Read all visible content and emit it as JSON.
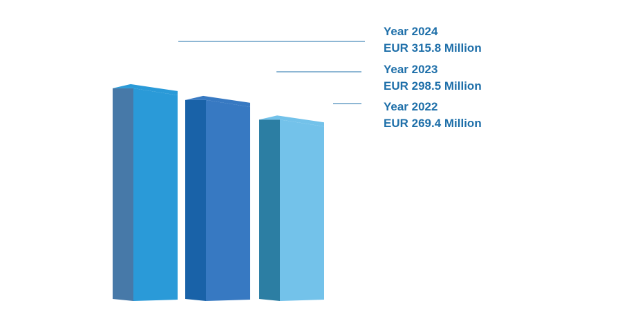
{
  "chart_data": {
    "type": "bar",
    "style": "3d-columns",
    "categories": [
      "Year 2024",
      "Year 2023",
      "Year 2022"
    ],
    "values": [
      315.8,
      298.5,
      269.4
    ],
    "value_labels": [
      "EUR 315.8 Million",
      "EUR 298.5 Million",
      "EUR 269.4 Million"
    ],
    "unit": "EUR Million",
    "title": "",
    "xlabel": "",
    "ylabel": "",
    "grid": false,
    "legend": "none",
    "colors": {
      "bars": [
        {
          "front": "#2A9AD8",
          "side": "#4779A8",
          "top": "#2A9AD8"
        },
        {
          "front": "#3779C2",
          "side": "#1962A8",
          "top": "#3779C2"
        },
        {
          "front": "#73C2EA",
          "side": "#2C7EA3",
          "top": "#73C2EA"
        }
      ],
      "label_text": "#1E6FA9",
      "leader_line": "#1E6FA9"
    }
  }
}
